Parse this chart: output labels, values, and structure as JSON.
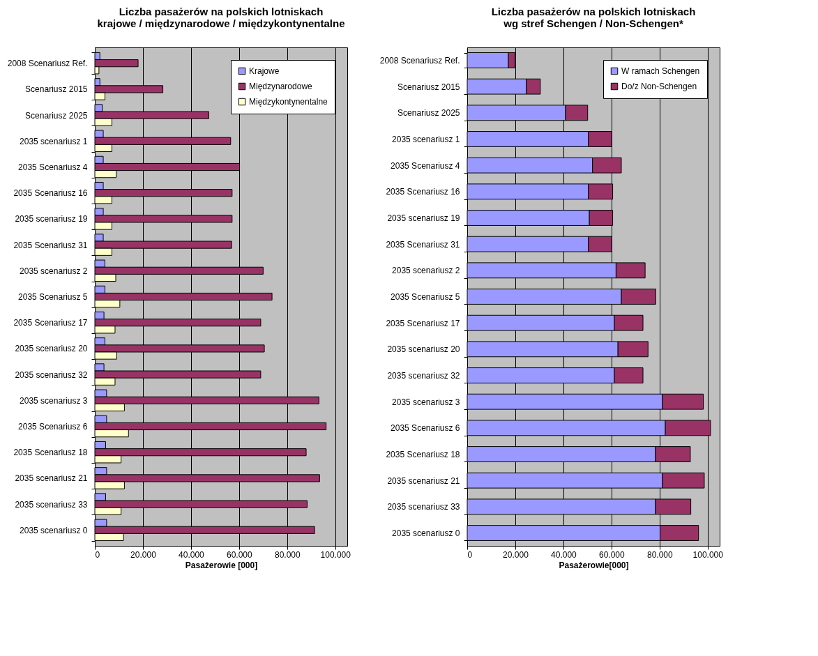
{
  "chart_data": [
    {
      "type": "bar",
      "orientation": "horizontal",
      "title": "Liczba pasażerów na polskich lotniskach\nkrajowe / międzynarodowe / międzykontynentalne",
      "xlabel": "Pasażerowie [000]",
      "categories": [
        "2008 Scenariusz Ref.",
        "Scenariusz 2015",
        "Scenariusz 2025",
        "2035 scenariusz 1",
        "2035 Scenariusz 4",
        "2035 Scenariusz 16",
        "2035 scenariusz 19",
        "2035 Scenariusz 31",
        "2035 scenariusz 2",
        "2035 Scenariusz 5",
        "2035 Scenariusz 17",
        "2035 scenariusz 20",
        "2035 scenariusz 32",
        "2035 scenariusz 3",
        "2035 Scenariusz 6",
        "2035 Scenariusz 18",
        "2035 scenariusz 21",
        "2035 scenariusz 33",
        "2035 scenariusz 0"
      ],
      "series": [
        {
          "name": "Krajowe",
          "color": "#9999ff",
          "values": [
            2100,
            2100,
            3100,
            3500,
            3500,
            3500,
            3500,
            3500,
            4200,
            4200,
            3800,
            4200,
            3800,
            4900,
            4900,
            4500,
            4900,
            4500,
            4900
          ]
        },
        {
          "name": "Międzynarodowe",
          "color": "#993366",
          "values": [
            18000,
            28300,
            47400,
            56500,
            60200,
            57100,
            57100,
            56900,
            70000,
            73700,
            69000,
            70500,
            69000,
            93200,
            96200,
            87900,
            93500,
            88300,
            91400
          ]
        },
        {
          "name": "Międzykontynentalne",
          "color": "#ffffcc",
          "values": [
            1700,
            4200,
            7100,
            7100,
            8900,
            7100,
            7100,
            7100,
            8700,
            10400,
            8400,
            9100,
            8400,
            12300,
            14000,
            10900,
            12300,
            10900,
            11900
          ]
        }
      ],
      "xlim": [
        0,
        105000
      ],
      "xticks": [
        0,
        {
          "value": 20000,
          "label": "20.000"
        },
        {
          "value": 40000,
          "label": "40.000"
        },
        {
          "value": 60000,
          "label": "60.000"
        },
        {
          "value": 80000,
          "label": "80.000"
        },
        {
          "value": 100000,
          "label": "100.000"
        }
      ],
      "grid": "x",
      "legend": "top right"
    },
    {
      "type": "bar",
      "orientation": "horizontal",
      "stacked": true,
      "title": "Liczba pasażerów na polskich lotniskach\nwg stref Schengen / Non-Schengen*",
      "xlabel": "Pasażerowie[000]",
      "categories": [
        "2008 Scenariusz Ref.",
        "Scenariusz 2015",
        "Scenariusz 2025",
        "2035 scenariusz 1",
        "2035 Scenariusz 4",
        "2035 Scenariusz 16",
        "2035 scenariusz 19",
        "2035 Scenariusz 31",
        "2035 scenariusz 2",
        "2035 Scenariusz 5",
        "2035 Scenariusz 17",
        "2035 scenariusz 20",
        "2035 scenariusz 32",
        "2035 scenariusz 3",
        "2035 Scenariusz 6",
        "2035 Scenariusz 18",
        "2035 scenariusz 21",
        "2035 scenariusz 33",
        "2035 scenariusz 0"
      ],
      "series": [
        {
          "name": "W ramach Schengen",
          "color": "#9999ff",
          "values": [
            17100,
            24600,
            40900,
            50400,
            52100,
            50400,
            50800,
            50400,
            61900,
            64100,
            61200,
            62700,
            61200,
            81200,
            82400,
            78300,
            81200,
            78300,
            80200
          ]
        },
        {
          "name": "Do/z Non-Schengen",
          "color": "#993366",
          "values": [
            2800,
            5800,
            9200,
            9700,
            12000,
            10100,
            9700,
            9700,
            12100,
            14300,
            11900,
            12500,
            11900,
            17000,
            18800,
            14500,
            17400,
            14700,
            16000
          ]
        }
      ],
      "xlim": [
        0,
        105000
      ],
      "xticks": [
        0,
        {
          "value": 20000,
          "label": "20.000"
        },
        {
          "value": 40000,
          "label": "40.000"
        },
        {
          "value": 60000,
          "label": "60.000"
        },
        {
          "value": 80000,
          "label": "80.000"
        },
        {
          "value": 100000,
          "label": "100.000"
        }
      ],
      "grid": "x",
      "legend": "top right"
    }
  ]
}
